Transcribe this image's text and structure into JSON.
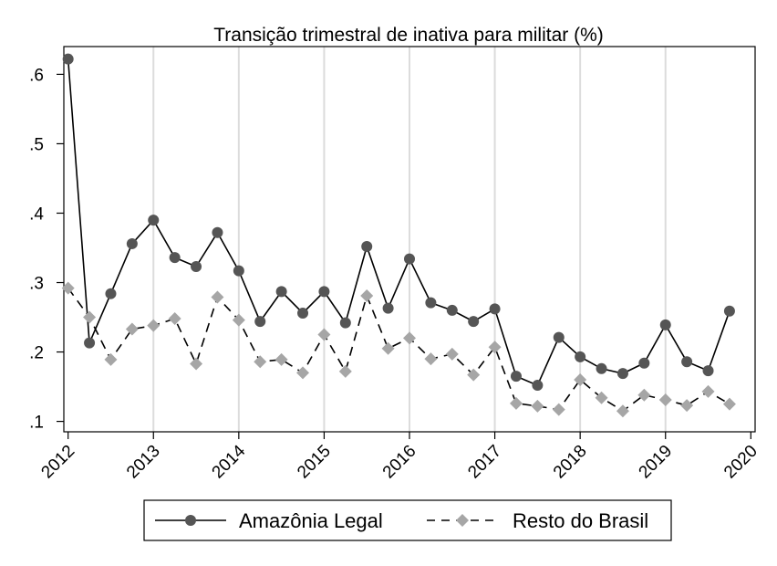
{
  "chart_data": {
    "type": "line",
    "title": "Transição trimestral de inativa para militar (%)",
    "xlabel": "",
    "ylabel": "",
    "x": [
      2012,
      2012.25,
      2012.5,
      2012.75,
      2013,
      2013.25,
      2013.5,
      2013.75,
      2014,
      2014.25,
      2014.5,
      2014.75,
      2015,
      2015.25,
      2015.5,
      2015.75,
      2016,
      2016.25,
      2016.5,
      2016.75,
      2017,
      2017.25,
      2017.5,
      2017.75,
      2018,
      2018.25,
      2018.5,
      2018.75,
      2019,
      2019.25,
      2019.5,
      2019.75
    ],
    "xlim": [
      2011.95,
      2020.05
    ],
    "ylim": [
      0.085,
      0.64
    ],
    "x_ticks": [
      2012,
      2013,
      2014,
      2015,
      2016,
      2017,
      2018,
      2019,
      2020
    ],
    "x_tick_labels": [
      "2012",
      "2013",
      "2014",
      "2015",
      "2016",
      "2017",
      "2018",
      "2019",
      "2020"
    ],
    "y_ticks": [
      0.1,
      0.2,
      0.3,
      0.4,
      0.5,
      0.6
    ],
    "y_tick_labels": [
      ".1",
      ".2",
      ".3",
      ".4",
      ".5",
      ".6"
    ],
    "grid": "vertical",
    "legend_position": "bottom",
    "series": [
      {
        "name": "Amazônia Legal",
        "color": "#000000",
        "marker_color": "#555555",
        "marker": "circle",
        "line_style": "solid",
        "values": [
          0.622,
          0.213,
          0.284,
          0.356,
          0.39,
          0.336,
          0.323,
          0.372,
          0.317,
          0.244,
          0.287,
          0.256,
          0.287,
          0.242,
          0.352,
          0.263,
          0.334,
          0.271,
          0.26,
          0.244,
          0.262,
          0.165,
          0.152,
          0.221,
          0.193,
          0.176,
          0.169,
          0.184,
          0.239,
          0.186,
          0.173,
          0.259
        ]
      },
      {
        "name": "Resto do Brasil",
        "color": "#000000",
        "marker_color": "#a6a6a6",
        "marker": "diamond",
        "line_style": "dashed",
        "values": [
          0.292,
          0.25,
          0.189,
          0.233,
          0.238,
          0.248,
          0.183,
          0.279,
          0.246,
          0.186,
          0.189,
          0.17,
          0.225,
          0.172,
          0.281,
          0.205,
          0.22,
          0.19,
          0.197,
          0.167,
          0.207,
          0.126,
          0.122,
          0.117,
          0.16,
          0.134,
          0.115,
          0.138,
          0.131,
          0.123,
          0.143,
          0.125
        ]
      }
    ]
  }
}
